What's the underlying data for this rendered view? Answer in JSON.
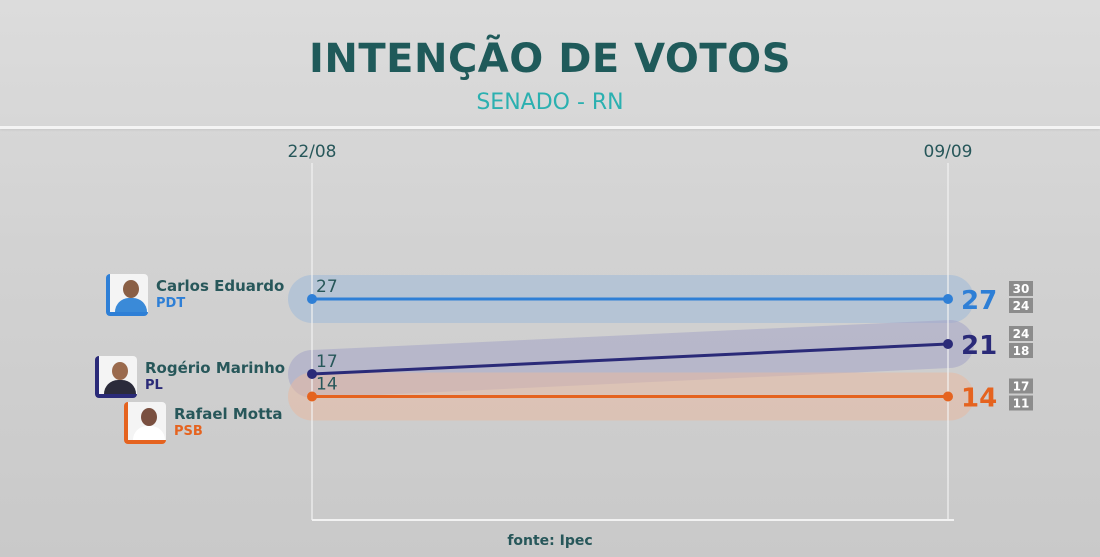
{
  "header": {
    "title": "INTENÇÃO DE VOTOS",
    "subtitle": "SENADO - RN"
  },
  "footer": {
    "source": "fonte: Ipec"
  },
  "chart_data": {
    "type": "line",
    "x": [
      "22/08",
      "09/09"
    ],
    "ylim": [
      10,
      30
    ],
    "grid": false,
    "series": [
      {
        "name": "Carlos Eduardo",
        "party": "PDT",
        "values": [
          27,
          27
        ],
        "range_final": [
          30,
          24
        ],
        "color": "#2e7fd6",
        "band_color": "#9fb9d8"
      },
      {
        "name": "Rogério Marinho",
        "party": "PL",
        "values": [
          17,
          21
        ],
        "range_final": [
          24,
          18
        ],
        "color": "#2a2a78",
        "band_color": "#a4a4c6"
      },
      {
        "name": "Rafael Motta",
        "party": "PSB",
        "values": [
          14,
          14
        ],
        "range_final": [
          17,
          11
        ],
        "color": "#e5631f",
        "band_color": "#e8b9a3"
      }
    ]
  }
}
